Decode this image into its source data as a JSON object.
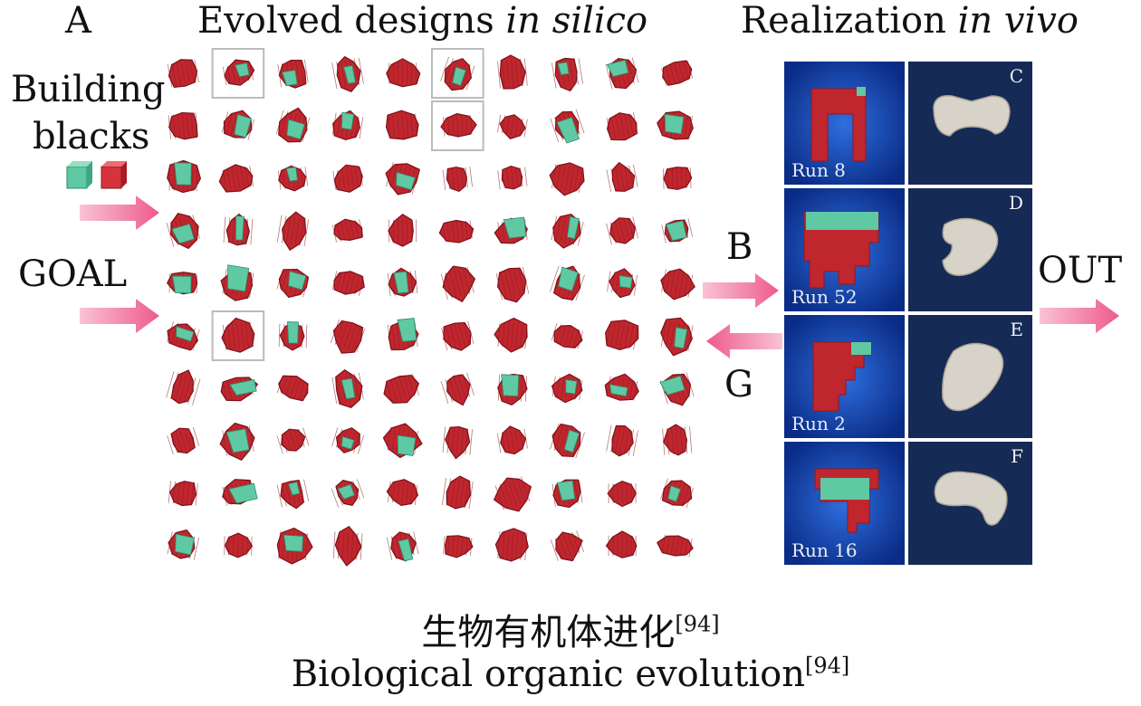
{
  "labels": {
    "a": "A",
    "title_left_main": "Evolved designs ",
    "title_left_italic": "in silico",
    "title_right_main": "Realization ",
    "title_right_italic": "in vivo",
    "building_line1": "Building",
    "building_line2": "blacks",
    "goal": "GOAL",
    "b": "B",
    "g": "G",
    "out": "OUT"
  },
  "panels": [
    {
      "run": "Run 8",
      "letter": "C"
    },
    {
      "run": "Run 52",
      "letter": "D"
    },
    {
      "run": "Run 2",
      "letter": "E"
    },
    {
      "run": "Run 16",
      "letter": "F"
    }
  ],
  "caption": {
    "cn": "生物有机体进化",
    "en": "Biological organic evolution",
    "ref": "[94]"
  },
  "colors": {
    "block_red": "#c0262e",
    "block_green": "#5fc9a3",
    "arrow_pink": "#f06a96",
    "panel_blue": "#0d3a9a",
    "photo_bg": "#152a55"
  }
}
